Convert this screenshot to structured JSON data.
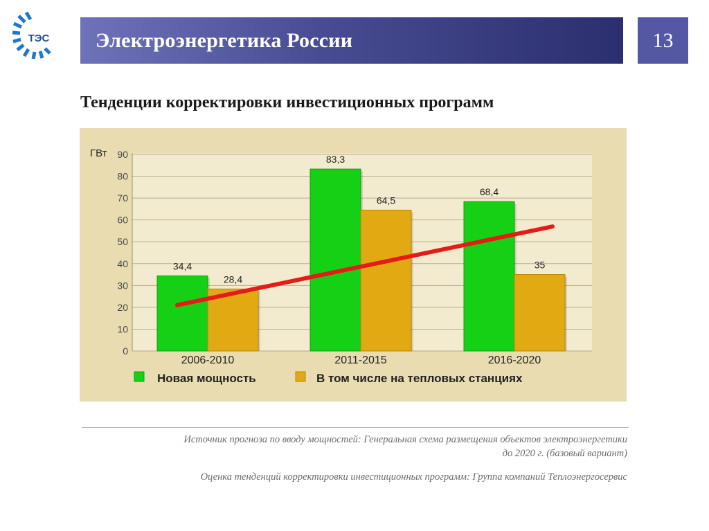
{
  "header": {
    "logo_text": "ТЭС",
    "title": "Электроэнергетика России",
    "page_number": "13"
  },
  "subtitle": "Тенденции корректировки инвестиционных программ",
  "colors": {
    "new_capacity": "#16d016",
    "thermal": "#e1aa12",
    "trend": "#e41b17",
    "chart_bg": "#e8dcb0",
    "header_accent": "#474c92"
  },
  "chart_data": {
    "type": "bar",
    "ylabel": "ГВт",
    "ylim": [
      0,
      90
    ],
    "yticks": [
      0,
      10,
      20,
      30,
      40,
      50,
      60,
      70,
      80,
      90
    ],
    "grid": true,
    "legend_position": "bottom",
    "categories": [
      "2006-2010",
      "2011-2015",
      "2016-2020"
    ],
    "series": [
      {
        "name": "Новая мощность",
        "values": [
          34.4,
          83.3,
          68.4
        ],
        "labels": [
          "34,4",
          "83,3",
          "68,4"
        ]
      },
      {
        "name": "В том числе на тепловых станциях",
        "values": [
          28.4,
          64.5,
          35
        ],
        "labels": [
          "28,4",
          "64,5",
          "35"
        ]
      }
    ],
    "trend_line": {
      "from": 21,
      "to": 57
    }
  },
  "source": {
    "line1": "Источник прогноза по вводу мощностей: Генеральная схема размещения объектов электроэнергетики",
    "line2": "до 2020 г. (базовый вариант)",
    "line3": "Оценка тенденций корректировки инвестиционных программ: Группа компаний Теплоэнергосервис"
  }
}
